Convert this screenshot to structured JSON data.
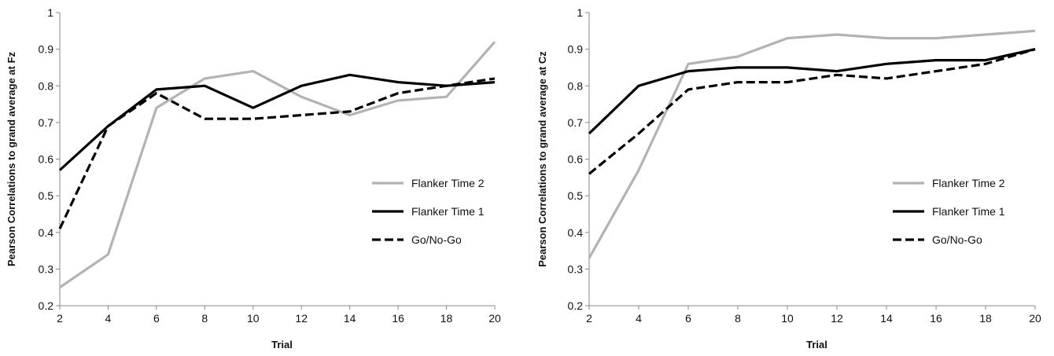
{
  "chart_data": [
    {
      "type": "line",
      "title": "",
      "xlabel": "Trial",
      "ylabel": "Pearson Correlations to grand average at Fz",
      "x": [
        2,
        4,
        6,
        8,
        10,
        12,
        14,
        16,
        18,
        20
      ],
      "xlim": [
        2,
        20
      ],
      "ylim": [
        0.2,
        1
      ],
      "yticks": [
        "0.2",
        "0.3",
        "0.4",
        "0.5",
        "0.6",
        "0.7",
        "0.8",
        "0.9",
        "1"
      ],
      "xticks": [
        "2",
        "4",
        "6",
        "8",
        "10",
        "12",
        "14",
        "16",
        "18",
        "20"
      ],
      "grid": false,
      "legend_position": "right",
      "series": [
        {
          "name": "Flanker Time 2",
          "color": "#b3b3b3",
          "dash": "solid",
          "values": [
            0.25,
            0.34,
            0.74,
            0.82,
            0.84,
            0.77,
            0.72,
            0.76,
            0.77,
            0.92
          ]
        },
        {
          "name": "Flanker Time 1",
          "color": "#000000",
          "dash": "solid",
          "values": [
            0.57,
            0.69,
            0.79,
            0.8,
            0.74,
            0.8,
            0.83,
            0.81,
            0.8,
            0.81
          ]
        },
        {
          "name": "Go/No-Go",
          "color": "#000000",
          "dash": "dashed",
          "values": [
            0.41,
            0.69,
            0.78,
            0.71,
            0.71,
            0.72,
            0.73,
            0.78,
            0.8,
            0.82
          ]
        }
      ]
    },
    {
      "type": "line",
      "title": "",
      "xlabel": "Trial",
      "ylabel": "Pearson Correlations to grand average at Cz",
      "x": [
        2,
        4,
        6,
        8,
        10,
        12,
        14,
        16,
        18,
        20
      ],
      "xlim": [
        2,
        20
      ],
      "ylim": [
        0.2,
        1
      ],
      "yticks": [
        "0.2",
        "0.3",
        "0.4",
        "0.5",
        "0.6",
        "0.7",
        "0.8",
        "0.9",
        "1"
      ],
      "xticks": [
        "2",
        "4",
        "6",
        "8",
        "10",
        "12",
        "14",
        "16",
        "18",
        "20"
      ],
      "grid": false,
      "legend_position": "right",
      "series": [
        {
          "name": "Flanker Time 2",
          "color": "#b3b3b3",
          "dash": "solid",
          "values": [
            0.33,
            0.57,
            0.86,
            0.88,
            0.93,
            0.94,
            0.93,
            0.93,
            0.94,
            0.95
          ]
        },
        {
          "name": "Flanker Time 1",
          "color": "#000000",
          "dash": "solid",
          "values": [
            0.67,
            0.8,
            0.84,
            0.85,
            0.85,
            0.84,
            0.86,
            0.87,
            0.87,
            0.9
          ]
        },
        {
          "name": "Go/No-Go",
          "color": "#000000",
          "dash": "dashed",
          "values": [
            0.56,
            0.67,
            0.79,
            0.81,
            0.81,
            0.83,
            0.82,
            0.84,
            0.86,
            0.9
          ]
        }
      ]
    }
  ]
}
